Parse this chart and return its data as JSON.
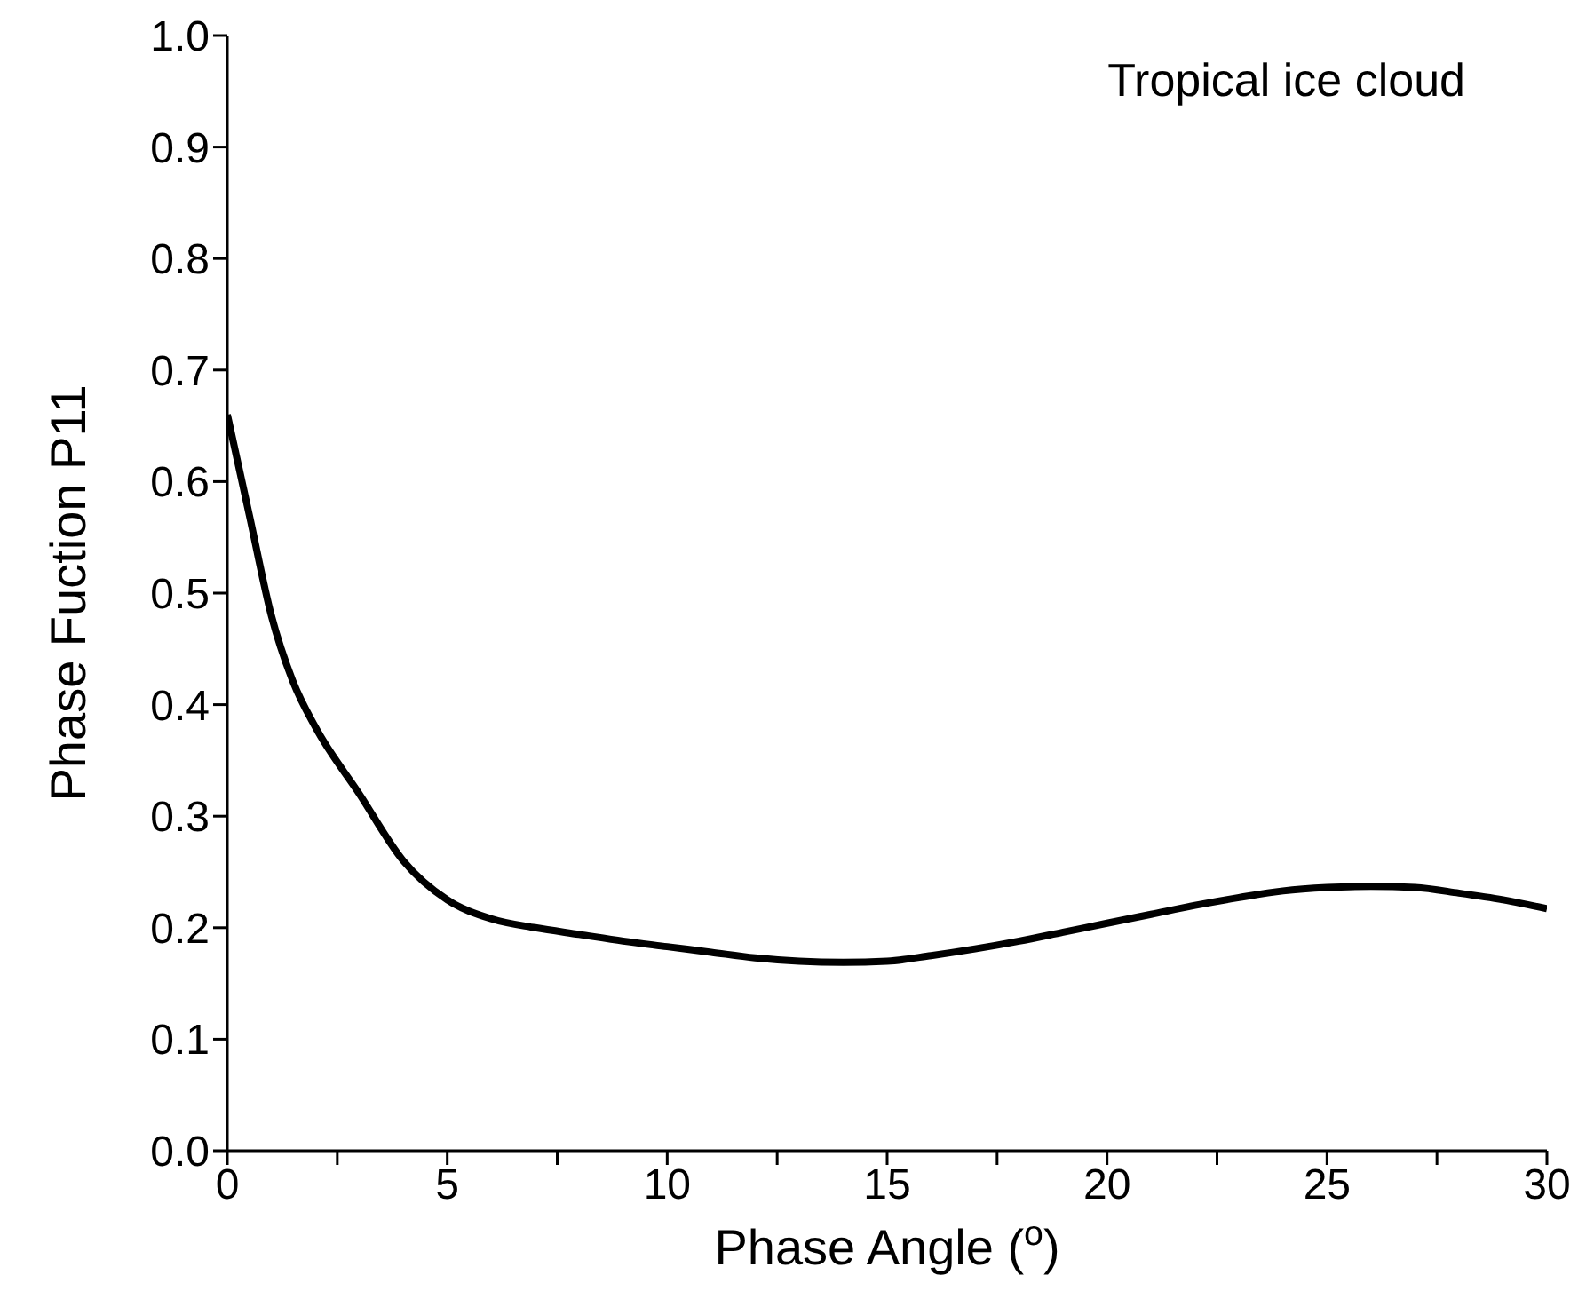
{
  "chart_data": {
    "type": "line",
    "xlabel": "Phase Angle ($^{o}$)",
    "ylabel": "Phase Fuction P11",
    "annotations": [
      "Tropical ice cloud"
    ],
    "x": [
      0,
      0.5,
      1,
      1.5,
      2,
      3,
      4,
      5,
      6,
      7,
      8,
      9,
      10,
      11,
      12,
      13,
      14,
      15,
      16,
      17,
      18,
      19,
      20,
      21,
      22,
      23,
      24,
      25,
      26,
      27,
      28,
      29,
      30
    ],
    "series": [
      {
        "color": "#000000",
        "values": [
          0.66,
          0.57,
          0.48,
          0.42,
          0.38,
          0.32,
          0.26,
          0.225,
          0.208,
          0.2,
          0.194,
          0.188,
          0.183,
          0.178,
          0.173,
          0.17,
          0.169,
          0.17,
          0.175,
          0.181,
          0.188,
          0.196,
          0.204,
          0.212,
          0.22,
          0.227,
          0.233,
          0.236,
          0.237,
          0.236,
          0.231,
          0.225,
          0.217
        ]
      }
    ],
    "xlim": [
      0,
      30
    ],
    "xticks": [
      0,
      {
        "value": 2.5,
        "label": null
      },
      5,
      {
        "value": 7.5,
        "label": null
      },
      10,
      {
        "value": 12.5,
        "label": null
      },
      15,
      {
        "value": 17.5,
        "label": null
      },
      20,
      {
        "value": 22.5,
        "label": null
      },
      25,
      {
        "value": 27.5,
        "label": null
      },
      30
    ],
    "ylim": [
      0,
      1
    ],
    "yticks": [
      "0.0",
      0.1,
      0.2,
      0.3,
      0.4,
      0.5,
      0.6,
      0.7,
      0.8,
      0.9,
      "1.0"
    ],
    "grid": false,
    "legend": false,
    "marker": "none",
    "line_style": "solid"
  }
}
